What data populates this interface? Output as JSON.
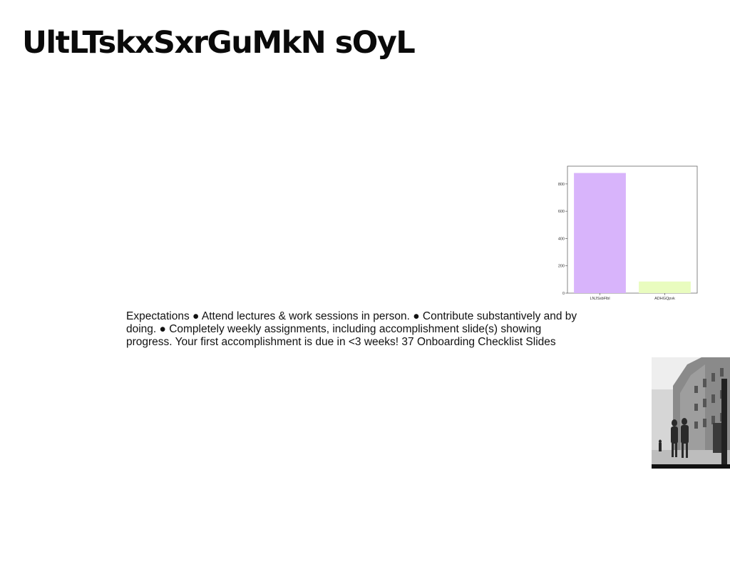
{
  "slide": {
    "title": "UltLTskxSxrGuMkN sOyL",
    "body": "Expectations ● Attend lectures & work sessions in person. ● Contribute substantively and by doing. ● Completely weekly assignments, including accomplishment slide(s) showing progress. Your first accomplishment is due in <3 weeks! 37 Onboarding Checklist Slides"
  },
  "chart_data": {
    "type": "bar",
    "categories": [
      "LNJSsbFlbl",
      "ADHGQpvk"
    ],
    "values": [
      880,
      85
    ],
    "colors": [
      "#d8b4fb",
      "#e9fcbf"
    ],
    "ylim": [
      0,
      930
    ],
    "yticks": [
      0,
      200,
      400,
      600,
      800
    ],
    "grid": false
  },
  "photo": {
    "description_icon": "street-photo-icon"
  }
}
